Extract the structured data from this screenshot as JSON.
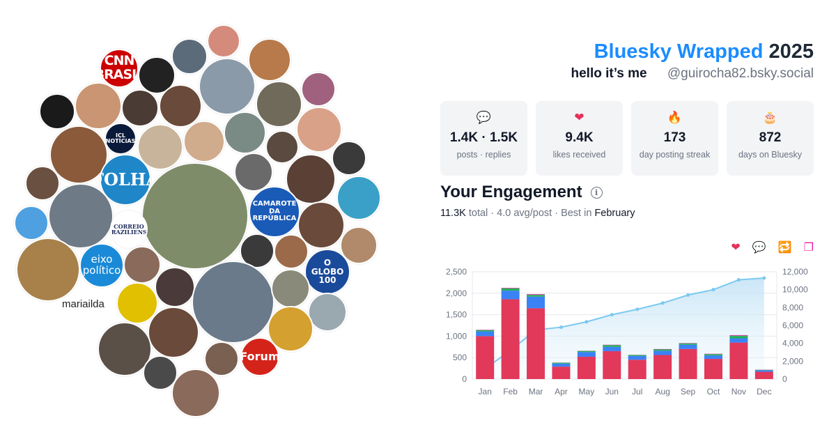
{
  "header": {
    "brand": "Bluesky Wrapped",
    "year": "2025",
    "display_name": "hello it’s me",
    "handle": "@guirocha82.bsky.social"
  },
  "stats": [
    {
      "icon": "speech-bubble-icon",
      "glyph": "💬",
      "value": "1.4K · 1.5K",
      "label": "posts · replies"
    },
    {
      "icon": "heart-icon",
      "glyph": "❤",
      "value": "9.4K",
      "label": "likes received"
    },
    {
      "icon": "fire-icon",
      "glyph": "🔥",
      "value": "173",
      "label": "day posting streak"
    },
    {
      "icon": "cake-icon",
      "glyph": "🎂",
      "value": "872",
      "label": "days on Bluesky"
    }
  ],
  "engagement": {
    "title": "Your Engagement",
    "total_value": "11.3K",
    "total_word": "total",
    "avg": "4.0 avg/post",
    "best_prefix": "Best in",
    "best_month": "February",
    "legend": [
      {
        "icon": "heart-icon",
        "glyph": "❤",
        "color": "#e5315a"
      },
      {
        "icon": "reply-icon",
        "glyph": "💬",
        "color": "#1d6fe0"
      },
      {
        "icon": "repost-icon",
        "glyph": "🔁",
        "color": "#16a34a"
      },
      {
        "icon": "quote-icon",
        "glyph": "❐",
        "color": "#e81ea6"
      }
    ]
  },
  "circles": {
    "broken_image_label": "mariailda",
    "logos": {
      "cnn": "CNN BRASIL",
      "folha": "FOLHA",
      "globo": "O GLOBO 100",
      "eixo": "eixo político",
      "forum": "Forum",
      "camarote": "CAMAROTE DA REPÚBLICA",
      "icl": "ICL NOTÍCIAS",
      "correio": "CORREIO BRAZILIENSE"
    }
  },
  "chart_data": {
    "type": "bar",
    "categories": [
      "Jan",
      "Feb",
      "Mar",
      "Apr",
      "May",
      "Jun",
      "Jul",
      "Aug",
      "Sep",
      "Oct",
      "Nov",
      "Dec"
    ],
    "stacked": true,
    "series": [
      {
        "color": "#e2385a",
        "values": [
          1000,
          1860,
          1650,
          290,
          520,
          650,
          450,
          560,
          700,
          470,
          850,
          170
        ]
      },
      {
        "color": "#3b82f6",
        "values": [
          110,
          200,
          270,
          70,
          110,
          100,
          90,
          100,
          100,
          80,
          100,
          35
        ]
      },
      {
        "color": "#22b05c",
        "values": [
          30,
          50,
          40,
          20,
          25,
          40,
          20,
          30,
          30,
          30,
          55,
          10
        ]
      },
      {
        "color": "#c94ea0",
        "values": [
          10,
          15,
          20,
          5,
          5,
          10,
          5,
          10,
          10,
          10,
          20,
          5
        ]
      }
    ],
    "cumulative_line": {
      "color": "#7ac8f0",
      "values": [
        1150,
        3200,
        5500,
        5800,
        6400,
        7200,
        7800,
        8500,
        9400,
        10000,
        11100,
        11300
      ]
    },
    "y_left": {
      "ticks": [
        "0",
        "500",
        "1,000",
        "1,500",
        "2,000",
        "2,500"
      ],
      "max": 2500
    },
    "y_right": {
      "ticks": [
        "0",
        "2,000",
        "4,000",
        "6,000",
        "8,000",
        "10,000",
        "12,000"
      ],
      "max": 12000
    },
    "grid": true
  }
}
